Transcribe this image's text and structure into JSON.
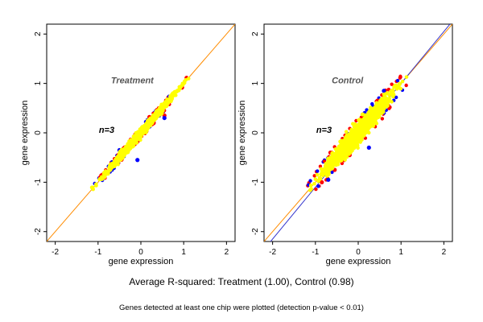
{
  "figure": {
    "rsquared_text": "Average R-squared: Treatment (1.00), Control (0.98)",
    "note_text": "Genes detected at least one chip were plotted (detection p-value < 0.01)"
  },
  "colors": {
    "points_main": "#ffff00",
    "points_red": "#ff0000",
    "points_blue": "#0000ff",
    "identity_line": "#ff8c00",
    "fit_line_control": "#3333cc",
    "background": "#ffffff"
  },
  "chart_data": [
    {
      "type": "scatter",
      "title": "Treatment",
      "annotation": "n=3",
      "xlabel": "gene expression",
      "ylabel": "gene expression",
      "xlim": [
        -2.2,
        2.2
      ],
      "ylim": [
        -2.2,
        2.2
      ],
      "xticks": [
        "-2",
        "-1",
        "0",
        "1",
        "2"
      ],
      "yticks": [
        "-2",
        "-1",
        "0",
        "1",
        "2"
      ],
      "grid": false,
      "point_cloud": {
        "x_range": [
          -1.15,
          1.15
        ],
        "center": [
          0,
          0
        ],
        "spread_perpendicular": 0.05,
        "color": "yellow"
      },
      "outliers_red": [
        [
          -0.9,
          -0.85
        ],
        [
          -0.6,
          -0.55
        ],
        [
          -0.3,
          -0.3
        ],
        [
          0.3,
          0.2
        ],
        [
          0.5,
          0.42
        ],
        [
          0.55,
          0.35
        ],
        [
          0.2,
          0.32
        ],
        [
          -0.1,
          -0.18
        ]
      ],
      "outliers_blue": [
        [
          -0.75,
          -0.68
        ],
        [
          -0.5,
          -0.35
        ],
        [
          -0.08,
          -0.55
        ],
        [
          0.12,
          0.22
        ],
        [
          0.55,
          0.3
        ]
      ],
      "lines": [
        {
          "name": "",
          "slope": 1.0,
          "intercept": 0.0,
          "color": "orange"
        }
      ]
    },
    {
      "type": "scatter",
      "title": "Control",
      "annotation": "n=3",
      "xlabel": "gene expression",
      "ylabel": "gene expression",
      "xlim": [
        -2.2,
        2.2
      ],
      "ylim": [
        -2.2,
        2.2
      ],
      "xticks": [
        "-2",
        "-1",
        "0",
        "1",
        "2"
      ],
      "yticks": [
        "-2",
        "-1",
        "0",
        "1",
        "2"
      ],
      "grid": false,
      "point_cloud": {
        "x_range": [
          -1.15,
          1.15
        ],
        "center": [
          0,
          0
        ],
        "spread_perpendicular": 0.13,
        "color": "yellow"
      },
      "outliers_red": [
        [
          -0.85,
          -1.0
        ],
        [
          -0.55,
          -0.75
        ],
        [
          -0.2,
          -0.45
        ],
        [
          0.25,
          0.15
        ],
        [
          0.45,
          0.65
        ],
        [
          0.7,
          0.55
        ],
        [
          0.15,
          0.35
        ],
        [
          -0.65,
          -0.4
        ]
      ],
      "outliers_blue": [
        [
          -0.7,
          -0.95
        ],
        [
          -0.15,
          -0.3
        ],
        [
          0.15,
          0.4
        ],
        [
          0.6,
          0.85
        ],
        [
          0.25,
          -0.3
        ]
      ],
      "lines": [
        {
          "name": "",
          "slope": 1.0,
          "intercept": 0.0,
          "color": "orange"
        },
        {
          "name": "",
          "slope": 1.05,
          "intercept": -0.05,
          "color": "blue"
        }
      ]
    }
  ]
}
